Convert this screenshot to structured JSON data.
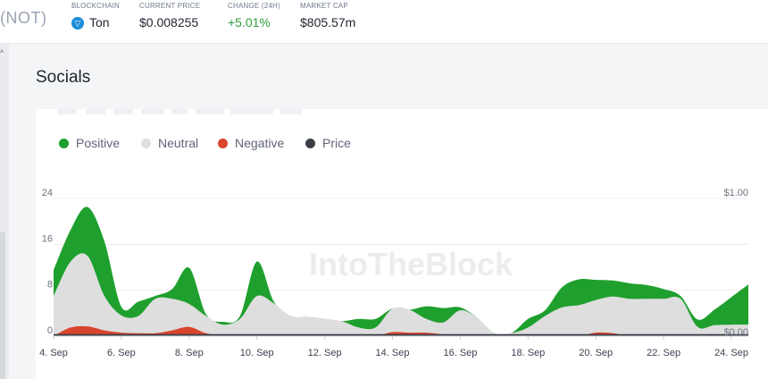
{
  "header": {
    "ticker": "(NOT)",
    "blockchain": {
      "label": "BLOCKCHAIN",
      "value": "Ton"
    },
    "price": {
      "label": "CURRENT PRICE",
      "value": "$0.008255"
    },
    "change": {
      "label": "CHANGE (24H)",
      "value": "+5.01%"
    },
    "market_cap": {
      "label": "MARKET CAP",
      "value": "$805.57m"
    }
  },
  "section": {
    "title": "Socials"
  },
  "watermark": "IntoTheBlock",
  "colors": {
    "positive": "#1fa02e",
    "neutral": "#dedede",
    "negative": "#d8442c",
    "price": "#3b3f48",
    "positive_change": "#2e9e3f"
  },
  "chart_data": {
    "type": "area",
    "legend": [
      "Positive",
      "Neutral",
      "Negative",
      "Price"
    ],
    "legend_position": "top-left",
    "x": [
      "4. Sep",
      "4.5 Sep",
      "5. Sep",
      "5.5 Sep",
      "6. Sep",
      "6.5 Sep",
      "7. Sep",
      "7.5 Sep",
      "8. Sep",
      "8.5 Sep",
      "9. Sep",
      "9.5 Sep",
      "10. Sep",
      "10.5 Sep",
      "11. Sep",
      "11.5 Sep",
      "12. Sep",
      "12.5 Sep",
      "13. Sep",
      "13.5 Sep",
      "14. Sep",
      "14.5 Sep",
      "15. Sep",
      "15.5 Sep",
      "16. Sep",
      "16.5 Sep",
      "17. Sep",
      "17.5 Sep",
      "18. Sep",
      "18.5 Sep",
      "19. Sep",
      "19.5 Sep",
      "20. Sep",
      "20.5 Sep",
      "21. Sep",
      "21.5 Sep",
      "22. Sep",
      "22.5 Sep",
      "23. Sep",
      "23.5 Sep",
      "24. Sep",
      "24.5 Sep"
    ],
    "x_numeric": [
      4,
      4.5,
      5,
      5.5,
      6,
      6.5,
      7,
      7.5,
      8,
      8.5,
      9,
      9.5,
      10,
      10.5,
      11,
      11.5,
      12,
      12.5,
      13,
      13.5,
      14,
      14.5,
      15,
      15.5,
      16,
      16.5,
      17,
      17.5,
      18,
      18.5,
      19,
      19.5,
      20,
      20.5,
      21,
      21.5,
      22,
      22.5,
      23,
      23.5,
      24,
      24.5
    ],
    "xticks": [
      "4. Sep",
      "6. Sep",
      "8. Sep",
      "10. Sep",
      "12. Sep",
      "14. Sep",
      "16. Sep",
      "18. Sep",
      "20. Sep",
      "22. Sep",
      "24. Sep"
    ],
    "xtick_values": [
      4,
      6,
      8,
      10,
      12,
      14,
      16,
      18,
      20,
      22,
      24
    ],
    "xlim": [
      4,
      24.5
    ],
    "ylim": [
      0,
      24
    ],
    "yticks": [
      "0",
      "8",
      "16",
      "24"
    ],
    "ytick_values": [
      0,
      8,
      16,
      24
    ],
    "y2ticks": [
      "$0.00",
      "$1.00"
    ],
    "y2lim": [
      0,
      1
    ],
    "series": [
      {
        "name": "Negative",
        "color": "#d8442c",
        "values": [
          0,
          1.5,
          1.7,
          1,
          0.6,
          0.5,
          0.5,
          1,
          1.6,
          0.5,
          0,
          0,
          0,
          0,
          0,
          0,
          0,
          0,
          0,
          0,
          0.7,
          0.6,
          0.6,
          0.3,
          0,
          0,
          0,
          0,
          0,
          0,
          0,
          0,
          0.6,
          0.5,
          0,
          0,
          0,
          0,
          0,
          0,
          0,
          0
        ]
      },
      {
        "name": "Neutral",
        "color": "#dedede",
        "values": [
          7,
          11.5,
          12.3,
          6,
          3,
          3,
          6,
          5.5,
          4,
          3,
          2,
          3,
          7,
          5.7,
          3.5,
          3.3,
          3,
          2.6,
          1.5,
          1.5,
          4.1,
          4,
          2.4,
          2.1,
          4.5,
          3.2,
          0.5,
          0.5,
          1.5,
          3.5,
          5,
          5.4,
          5.7,
          6.4,
          6.5,
          6.5,
          6.5,
          6.5,
          1.6,
          1.9,
          2,
          2
        ]
      },
      {
        "name": "Positive",
        "color": "#1fa02e",
        "values": [
          4.5,
          5.5,
          8.5,
          9.5,
          1.5,
          2.5,
          0.5,
          1.7,
          6.3,
          0.3,
          0.5,
          0.5,
          6,
          0.3,
          0,
          0,
          0,
          0,
          1.5,
          1.5,
          0,
          0,
          2.2,
          2.5,
          0.5,
          0,
          0,
          0,
          1.5,
          1,
          3.5,
          4.5,
          3.5,
          2.8,
          2.7,
          2.4,
          1.7,
          0.5,
          1.3,
          2.7,
          4.8,
          7
        ]
      },
      {
        "name": "Price",
        "color": "#3b3f48",
        "axis": "right",
        "values": [
          0.008,
          0.008,
          0.008,
          0.008,
          0.008,
          0.008,
          0.008,
          0.008,
          0.008,
          0.008,
          0.008,
          0.008,
          0.008,
          0.008,
          0.008,
          0.008,
          0.008,
          0.008,
          0.008,
          0.008,
          0.008,
          0.008,
          0.008,
          0.008,
          0.008,
          0.008,
          0.008,
          0.008,
          0.008,
          0.008,
          0.008,
          0.008,
          0.008,
          0.008,
          0.008,
          0.008,
          0.008,
          0.008,
          0.008,
          0.008,
          0.008,
          0.008
        ]
      }
    ],
    "grid": true
  }
}
